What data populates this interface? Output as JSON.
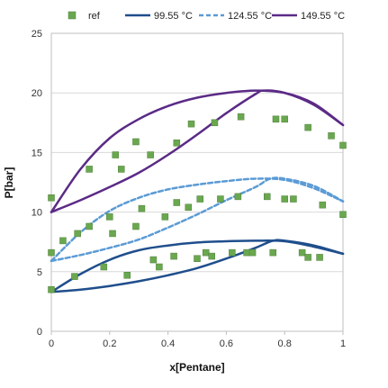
{
  "chart_data": {
    "type": "scatter",
    "xlabel": "x[Pentane]",
    "ylabel": "P[bar]",
    "xlim": [
      0,
      1
    ],
    "ylim": [
      0,
      25
    ],
    "xticks": [
      "0",
      "0.2",
      "0.4",
      "0.6",
      "0.8",
      "1"
    ],
    "yticks": [
      "0",
      "5",
      "10",
      "15",
      "20",
      "25"
    ],
    "grid": "horizontal",
    "legend_position": "top",
    "series": [
      {
        "name": "ref",
        "kind": "markers",
        "color": "#6aa84f",
        "points": [
          [
            0.0,
            3.5
          ],
          [
            0.0,
            6.6
          ],
          [
            0.04,
            7.6
          ],
          [
            0.08,
            4.6
          ],
          [
            0.09,
            8.2
          ],
          [
            0.13,
            8.8
          ],
          [
            0.18,
            5.4
          ],
          [
            0.2,
            9.6
          ],
          [
            0.21,
            8.2
          ],
          [
            0.26,
            4.7
          ],
          [
            0.29,
            8.8
          ],
          [
            0.31,
            10.3
          ],
          [
            0.35,
            6.0
          ],
          [
            0.37,
            5.4
          ],
          [
            0.39,
            9.6
          ],
          [
            0.42,
            6.3
          ],
          [
            0.43,
            10.8
          ],
          [
            0.47,
            10.4
          ],
          [
            0.5,
            6.1
          ],
          [
            0.51,
            11.1
          ],
          [
            0.53,
            6.6
          ],
          [
            0.55,
            6.3
          ],
          [
            0.58,
            11.1
          ],
          [
            0.62,
            6.6
          ],
          [
            0.64,
            11.3
          ],
          [
            0.67,
            6.6
          ],
          [
            0.69,
            6.6
          ],
          [
            0.74,
            11.3
          ],
          [
            0.76,
            6.6
          ],
          [
            0.8,
            11.1
          ],
          [
            0.83,
            11.1
          ],
          [
            0.86,
            6.6
          ],
          [
            0.88,
            6.2
          ],
          [
            0.92,
            6.2
          ],
          [
            0.93,
            10.6
          ],
          [
            1.0,
            9.8
          ],
          [
            0.0,
            11.2
          ],
          [
            0.13,
            13.6
          ],
          [
            0.22,
            14.8
          ],
          [
            0.24,
            13.6
          ],
          [
            0.29,
            15.9
          ],
          [
            0.34,
            14.8
          ],
          [
            0.43,
            15.8
          ],
          [
            0.48,
            17.4
          ],
          [
            0.56,
            17.5
          ],
          [
            0.65,
            18.0
          ],
          [
            0.77,
            17.8
          ],
          [
            0.8,
            17.8
          ],
          [
            0.88,
            17.1
          ],
          [
            0.96,
            16.4
          ],
          [
            1.0,
            15.6
          ]
        ]
      },
      {
        "name": "99.55 °C",
        "kind": "line",
        "color": "#1f4e8c",
        "dash": "solid",
        "bubble": [
          [
            0,
            3.3
          ],
          [
            0.1,
            3.5
          ],
          [
            0.2,
            3.8
          ],
          [
            0.3,
            4.2
          ],
          [
            0.4,
            4.7
          ],
          [
            0.5,
            5.3
          ],
          [
            0.6,
            6.1
          ],
          [
            0.7,
            7.0
          ],
          [
            0.76,
            7.6
          ],
          [
            0.8,
            7.6
          ],
          [
            0.9,
            7.2
          ],
          [
            1.0,
            6.5
          ]
        ],
        "dew": [
          [
            0,
            3.3
          ],
          [
            0.1,
            4.8
          ],
          [
            0.2,
            6.0
          ],
          [
            0.3,
            6.8
          ],
          [
            0.4,
            7.2
          ],
          [
            0.5,
            7.45
          ],
          [
            0.6,
            7.55
          ],
          [
            0.7,
            7.6
          ],
          [
            0.8,
            7.55
          ],
          [
            0.9,
            7.1
          ],
          [
            1.0,
            6.5
          ]
        ]
      },
      {
        "name": "124.55 °C",
        "kind": "line",
        "color": "#5b9bd5",
        "dash": "dashed",
        "bubble": [
          [
            0,
            5.9
          ],
          [
            0.1,
            6.4
          ],
          [
            0.2,
            7.0
          ],
          [
            0.3,
            7.7
          ],
          [
            0.4,
            8.7
          ],
          [
            0.5,
            9.8
          ],
          [
            0.6,
            11.0
          ],
          [
            0.7,
            12.1
          ],
          [
            0.75,
            12.8
          ],
          [
            0.8,
            12.8
          ],
          [
            0.9,
            12.2
          ],
          [
            1.0,
            10.9
          ]
        ],
        "dew": [
          [
            0,
            5.9
          ],
          [
            0.1,
            8.3
          ],
          [
            0.2,
            10.1
          ],
          [
            0.3,
            11.2
          ],
          [
            0.4,
            11.9
          ],
          [
            0.5,
            12.3
          ],
          [
            0.6,
            12.6
          ],
          [
            0.7,
            12.8
          ],
          [
            0.8,
            12.7
          ],
          [
            0.9,
            12.0
          ],
          [
            1.0,
            10.9
          ]
        ]
      },
      {
        "name": "149.55 °C",
        "kind": "line",
        "color": "#5b2a86",
        "dash": "solid",
        "bubble": [
          [
            0,
            10.0
          ],
          [
            0.1,
            11.0
          ],
          [
            0.2,
            12.1
          ],
          [
            0.3,
            13.3
          ],
          [
            0.4,
            14.8
          ],
          [
            0.5,
            16.5
          ],
          [
            0.6,
            18.3
          ],
          [
            0.7,
            19.9
          ],
          [
            0.73,
            20.2
          ],
          [
            0.8,
            20.0
          ],
          [
            0.9,
            19.0
          ],
          [
            1.0,
            17.3
          ]
        ],
        "dew": [
          [
            0,
            10.0
          ],
          [
            0.1,
            13.6
          ],
          [
            0.2,
            16.2
          ],
          [
            0.3,
            17.8
          ],
          [
            0.4,
            18.9
          ],
          [
            0.5,
            19.6
          ],
          [
            0.6,
            20.0
          ],
          [
            0.7,
            20.2
          ],
          [
            0.8,
            20.0
          ],
          [
            0.9,
            19.1
          ],
          [
            1.0,
            17.3
          ]
        ]
      }
    ]
  }
}
